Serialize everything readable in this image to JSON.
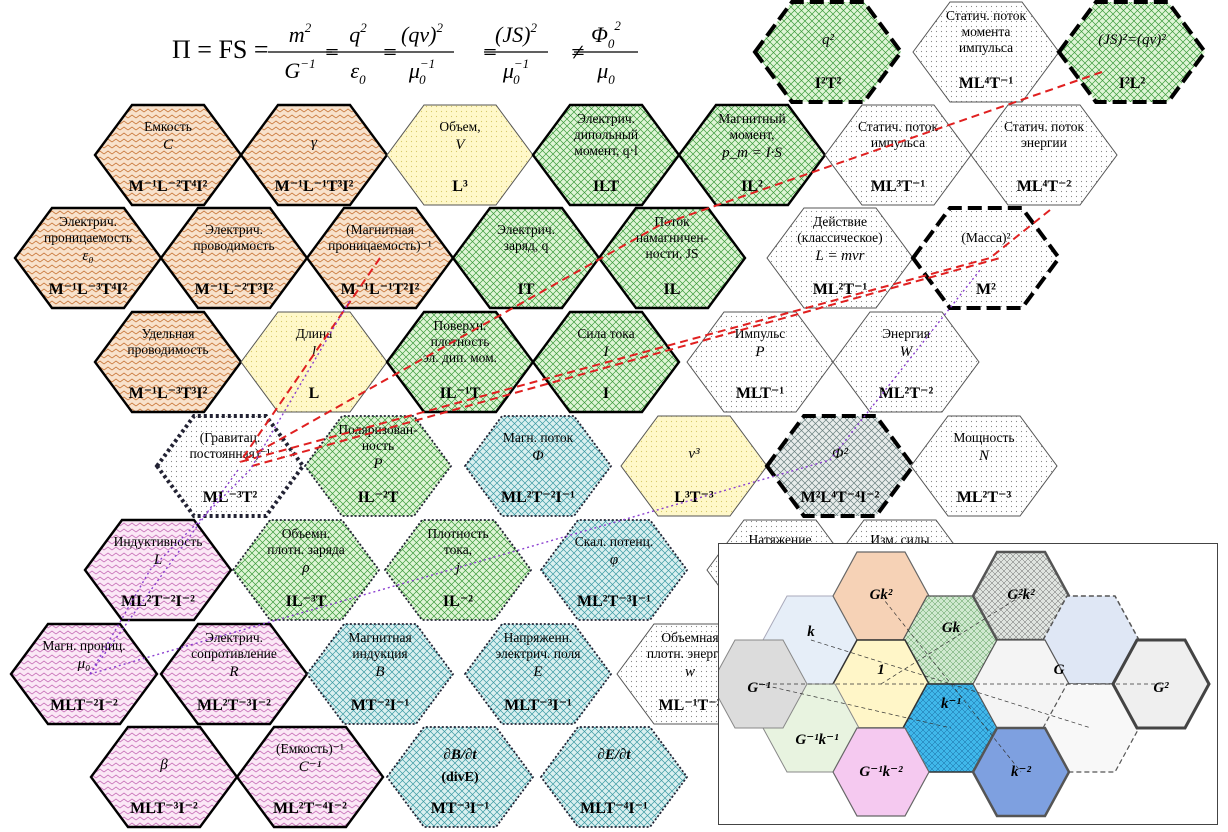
{
  "formula": {
    "lhs": "Π = FS =",
    "fractions": [
      {
        "num": "m",
        "num_sup": "2",
        "den": "G",
        "den_sup": "−1"
      },
      {
        "num": "q",
        "num_sup": "2",
        "den": "ε",
        "den_sub": "0"
      },
      {
        "num": "(qv)",
        "num_sup": "2",
        "den": "μ",
        "den_sub": "0",
        "den_sup": "−1"
      },
      {
        "num": "(JS)",
        "num_sup": "2",
        "den": "μ",
        "den_sub": "0",
        "den_sup": "−1"
      },
      {
        "num": "Φ",
        "num_sup": "2",
        "num_sub": "0",
        "den": "μ",
        "den_sub": "0"
      }
    ],
    "ops": [
      "=",
      "=",
      "=",
      "≠"
    ]
  },
  "hexes": [
    {
      "id": "capacitance",
      "lines": [
        "Емкость"
      ],
      "sym": "C",
      "dim": "M⁻¹L⁻²T⁴I²"
    },
    {
      "id": "gamma",
      "lines": [],
      "sym": "γ",
      "dim": "M⁻¹L⁻¹T³I²"
    },
    {
      "id": "volume",
      "lines": [
        "Объем,"
      ],
      "sym": "V",
      "dim": "L³"
    },
    {
      "id": "electric-dipole-moment",
      "lines": [
        "Электрич.",
        "дипольный",
        "момент, q·l"
      ],
      "sym": "",
      "dim": "ILT"
    },
    {
      "id": "magnetic-moment",
      "lines": [
        "Магнитный",
        "момент,"
      ],
      "sym": "p_m = I·S",
      "dim": "IL²"
    },
    {
      "id": "static-momentum-flux",
      "lines": [
        "Статич. поток",
        "импульса"
      ],
      "sym": "",
      "dim": "ML³T⁻¹"
    },
    {
      "id": "static-energy-flux",
      "lines": [
        "Статич. поток",
        "энергии"
      ],
      "sym": "",
      "dim": "ML⁴T⁻²"
    },
    {
      "id": "permittivity",
      "lines": [
        "Электрич.",
        "проницаемость"
      ],
      "sym": "ε₀",
      "dim": "M⁻¹L⁻³T⁴I²"
    },
    {
      "id": "conductance",
      "lines": [
        "Электрич.",
        "проводимость"
      ],
      "sym": "",
      "dim": "M⁻¹L⁻²T³I²"
    },
    {
      "id": "inverse-permeability",
      "lines": [
        "(Магнитная",
        "проницаемость)⁻¹"
      ],
      "sym": "",
      "dim": "M⁻¹L⁻¹T²I²"
    },
    {
      "id": "electric-charge",
      "lines": [
        "Электрич.",
        "заряд, q"
      ],
      "sym": "",
      "dim": "IT"
    },
    {
      "id": "magnetization-flux",
      "lines": [
        "Поток",
        "намагничен-",
        "ности, JS"
      ],
      "sym": "",
      "dim": "IL"
    },
    {
      "id": "action",
      "lines": [
        "Действие",
        "(классическое)"
      ],
      "sym": "L = mvr",
      "dim": "ML²T⁻¹"
    },
    {
      "id": "mass-squared",
      "lines": [
        "(Масса)²"
      ],
      "sym": "",
      "dim": "M²"
    },
    {
      "id": "specific-conductivity",
      "lines": [
        "Удельная",
        "проводимость"
      ],
      "sym": "",
      "dim": "M⁻¹L⁻³T³I²"
    },
    {
      "id": "length",
      "lines": [
        "Длина"
      ],
      "sym": "l",
      "dim": "L"
    },
    {
      "id": "surface-dipole-density",
      "lines": [
        "Поверхн.",
        "плотность",
        "эл. дип. мом."
      ],
      "sym": "",
      "dim": "IL⁻¹T"
    },
    {
      "id": "current",
      "lines": [
        "Сила тока"
      ],
      "sym": "I",
      "dim": "I"
    },
    {
      "id": "momentum",
      "lines": [
        "Импульс"
      ],
      "sym": "P",
      "dim": "MLT⁻¹"
    },
    {
      "id": "energy",
      "lines": [
        "Энергия"
      ],
      "sym": "W",
      "dim": "ML²T⁻²"
    },
    {
      "id": "inverse-gravitational-constant",
      "lines": [
        "(Гравитац.",
        "постоянная)⁻¹"
      ],
      "sym": "",
      "dim": "ML⁻³T²"
    },
    {
      "id": "polarization",
      "lines": [
        "Поляризован-",
        "ность"
      ],
      "sym": "P",
      "dim": "IL⁻²T"
    },
    {
      "id": "magnetic-flux",
      "lines": [
        "Магн. поток"
      ],
      "sym": "Φ",
      "dim": "ML²T⁻²I⁻¹"
    },
    {
      "id": "velocity-cubed",
      "lines": [],
      "sym": "v³",
      "dim": "L³T⁻³"
    },
    {
      "id": "flux-squared",
      "lines": [],
      "sym": "Φ²",
      "dim": "M²L⁴T⁻⁴I⁻²"
    },
    {
      "id": "power",
      "lines": [
        "Мощность"
      ],
      "sym": "N",
      "dim": "ML²T⁻³"
    },
    {
      "id": "inductance",
      "lines": [
        "Индуктивность"
      ],
      "sym": "L",
      "dim": "ML²T⁻²I⁻²"
    },
    {
      "id": "charge-density",
      "lines": [
        "Объемн.",
        "плотн. заряда"
      ],
      "sym": "ρ",
      "dim": "IL⁻³T"
    },
    {
      "id": "current-density",
      "lines": [
        "Плотность",
        "тока,"
      ],
      "sym": "j",
      "dim": "IL⁻²"
    },
    {
      "id": "scalar-potential",
      "lines": [
        "Скал. потенц."
      ],
      "sym": "φ",
      "dim": "ML²T⁻³I⁻¹"
    },
    {
      "id": "tension",
      "lines": [
        "Натяжение"
      ],
      "sym": "",
      "dim": ""
    },
    {
      "id": "force-change",
      "lines": [
        "Изм. силы"
      ],
      "sym": "",
      "dim": ""
    },
    {
      "id": "magnetic-permeability",
      "lines": [
        "Магн. прониц."
      ],
      "sym": "μ₀",
      "dim": "MLT⁻²I⁻²"
    },
    {
      "id": "resistance",
      "lines": [
        "Электрич.",
        "сопротивление"
      ],
      "sym": "R",
      "dim": "ML²T⁻³I⁻²"
    },
    {
      "id": "magnetic-induction",
      "lines": [
        "Магнитная",
        "индукция"
      ],
      "sym": "B",
      "dim": "MT⁻²I⁻¹"
    },
    {
      "id": "electric-field",
      "lines": [
        "Напряженн.",
        "электрич. поля"
      ],
      "sym": "E",
      "dim": "MLT⁻³I⁻¹"
    },
    {
      "id": "energy-density",
      "lines": [
        "Объемная",
        "плотн. энергии"
      ],
      "sym": "w",
      "dim": "ML⁻¹T⁻²"
    },
    {
      "id": "beta",
      "lines": [],
      "sym": "β",
      "dim": "MLT⁻³I⁻²"
    },
    {
      "id": "inverse-capacitance",
      "lines": [
        "(Емкость)⁻¹"
      ],
      "sym": "C⁻¹",
      "dim": "ML²T⁻⁴I⁻²"
    },
    {
      "id": "db-dt",
      "lines": [],
      "sym": "∂B/∂t",
      "sym2": "(divE)",
      "dim": "MT⁻³I⁻¹"
    },
    {
      "id": "de-dt",
      "lines": [],
      "sym": "∂E/∂t",
      "dim": "MLT⁻⁴I⁻¹"
    },
    {
      "id": "charge-squared",
      "lines": [],
      "sym": "q²",
      "dim": "I²T²"
    },
    {
      "id": "static-angular-momentum-flux",
      "lines": [
        "Статич. поток",
        "момента",
        "импульса"
      ],
      "sym": "",
      "dim": "ML⁴T⁻¹"
    },
    {
      "id": "js-squared",
      "lines": [],
      "sym": "(JS)²=(qv)²",
      "dim": "I²L²"
    }
  ],
  "inset": {
    "labels": [
      "Gk²",
      "G²k²",
      "k",
      "Gk",
      "1",
      "G",
      "G⁻¹",
      "G²",
      "k⁻¹",
      "G⁻¹k⁻¹",
      "G⁻¹k⁻²",
      "k⁻²"
    ]
  },
  "colors": {
    "brown": "#f6d7b9",
    "yellow": "#fff8c9",
    "green": "#cfeec3",
    "teal": "#c9eaeb",
    "pink": "#f5dcf0",
    "white": "#ffffff",
    "red": "#e02020",
    "purple": "#8b3fd0"
  }
}
